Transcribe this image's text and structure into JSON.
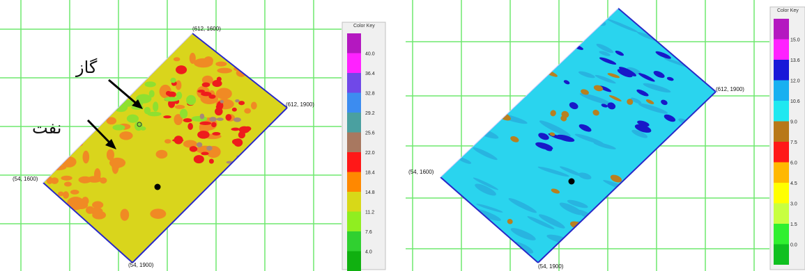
{
  "left": {
    "coords": {
      "top": "(612, 1600)",
      "right": "(612, 1900)",
      "left": "(54, 1600)",
      "bottom": "(54, 1900)"
    },
    "annotations": {
      "gas": "گاز",
      "oil": "نفت"
    },
    "key_title": "Color Key",
    "key_labels": [
      "40.0",
      "36.4",
      "32.8",
      "29.2",
      "25.6",
      "22.0",
      "18.4",
      "14.8",
      "11.2",
      "7.6",
      "4.0"
    ],
    "key_colors": [
      "#b418c0",
      "#ff22ff",
      "#7048e8",
      "#3c8cf0",
      "#4aa0a0",
      "#a87860",
      "#ff1818",
      "#ff8800",
      "#d8d818",
      "#90ee20",
      "#30d030",
      "#10b010"
    ],
    "colors": {
      "base": "#d9d51c",
      "orange": "#f08a24",
      "red": "#ee1c1c",
      "green": "#8fe030",
      "gray": "#a88878"
    }
  },
  "right": {
    "coords": {
      "right": "(612, 1900)",
      "left": "(54, 1600)",
      "bottom": "(54, 1900)"
    },
    "key_title": "Color Key",
    "key_labels": [
      "15.0",
      "13.6",
      "12.0",
      "10.6",
      "9.0",
      "7.5",
      "6.0",
      "4.5",
      "3.0",
      "1.5",
      "0.0"
    ],
    "key_colors": [
      "#b418c0",
      "#ff22ff",
      "#1818d8",
      "#18b0f0",
      "#20e8f0",
      "#b87818",
      "#ff1818",
      "#ffb800",
      "#ffff00",
      "#c8ff40",
      "#30f030",
      "#10c020"
    ],
    "colors": {
      "base": "#2ad4ee",
      "dark": "#1818c8",
      "brown": "#b88020",
      "light": "#28b4e0"
    }
  }
}
